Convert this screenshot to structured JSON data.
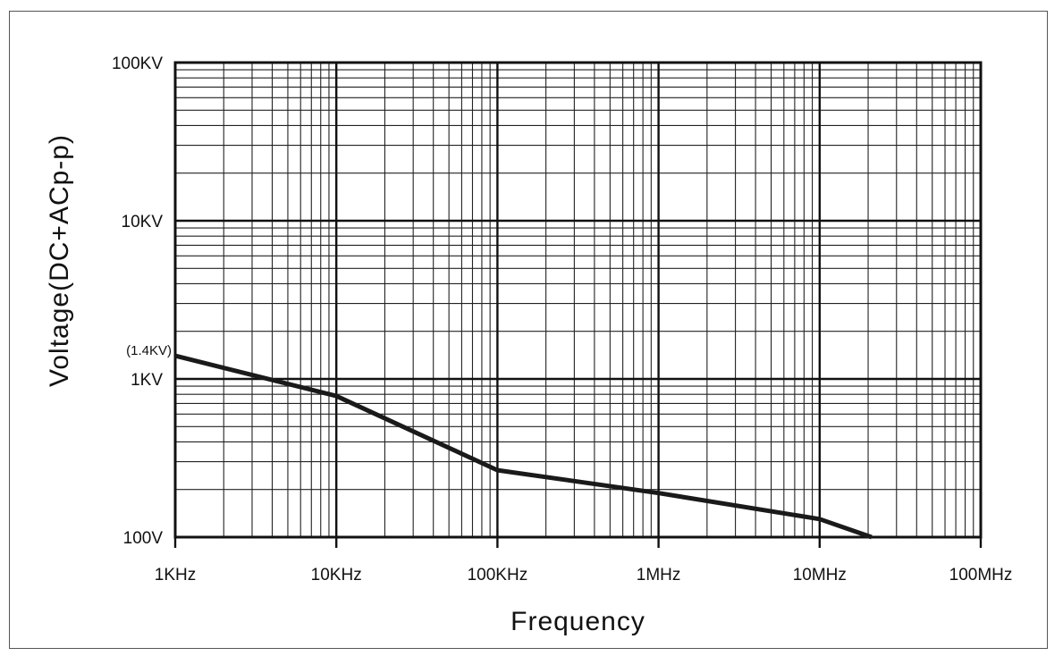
{
  "chart_data": {
    "type": "line",
    "title": "",
    "xlabel": "Frequency",
    "ylabel": "Voltage(DC+ACp-p)",
    "x_scale": "log",
    "y_scale": "log",
    "xlim": [
      1000,
      100000000
    ],
    "ylim": [
      100,
      100000
    ],
    "grid": true,
    "x_ticks": [
      {
        "value": 1000,
        "label": "1KHz"
      },
      {
        "value": 10000,
        "label": "10KHz"
      },
      {
        "value": 100000,
        "label": "100KHz"
      },
      {
        "value": 1000000,
        "label": "1MHz"
      },
      {
        "value": 10000000,
        "label": "10MHz"
      },
      {
        "value": 100000000,
        "label": "100MHz"
      }
    ],
    "y_ticks": [
      {
        "value": 100,
        "label": "100V"
      },
      {
        "value": 1000,
        "label": "1KV"
      },
      {
        "value": 10000,
        "label": "10KV"
      },
      {
        "value": 100000,
        "label": "100KV"
      }
    ],
    "annotations": [
      {
        "x": 1000,
        "y": 1400,
        "text": "(1.4KV)"
      }
    ],
    "series": [
      {
        "color": "#1a1a1a",
        "x": [
          1000,
          10000,
          100000,
          1000000,
          10000000,
          21000000
        ],
        "y": [
          1400,
          780,
          265,
          190,
          130,
          100
        ]
      }
    ]
  }
}
